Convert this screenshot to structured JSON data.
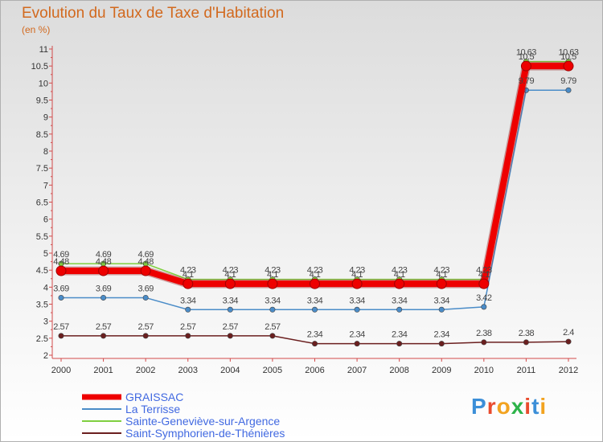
{
  "header": {
    "title": "Evolution du Taux de Taxe d'Habitation",
    "subtitle": "(en %)"
  },
  "colors": {
    "title": "#d2691e",
    "axis": "#d24b4b",
    "legend_text": "#4169e1"
  },
  "logo": {
    "text": "Proxiti",
    "letter_colors": [
      "#3c8fd8",
      "#e94b2e",
      "#f2a320",
      "#2db34a",
      "#e94b2e",
      "#3c8fd8",
      "#f2a320"
    ]
  },
  "chart_data": {
    "type": "line",
    "title": "Evolution du Taux de Taxe d'Habitation",
    "ylabel": "(en %)",
    "xlabel": "",
    "ylim": [
      2,
      11
    ],
    "yticks": [
      2,
      2.5,
      3,
      3.5,
      4,
      4.5,
      5,
      5.5,
      6,
      6.5,
      7,
      7.5,
      8,
      8.5,
      9,
      9.5,
      10,
      10.5,
      11
    ],
    "ytick_labels": [
      "2",
      "2.5",
      "3",
      "3.5",
      "4",
      "4.5",
      "5",
      "5.5",
      "6",
      "6.5",
      "7",
      "7.5",
      "8",
      "8.5",
      "9",
      "9.5",
      "10",
      "10.5",
      "11"
    ],
    "x": [
      "2000",
      "2001",
      "2002",
      "2003",
      "2004",
      "2005",
      "2006",
      "2007",
      "2008",
      "2009",
      "2010",
      "2011",
      "2012"
    ],
    "series": [
      {
        "name": "Saint-Symphorien-de-Thénières",
        "color": "#6b1f1f",
        "thick": false,
        "values": [
          2.57,
          2.57,
          2.57,
          2.57,
          2.57,
          2.57,
          2.34,
          2.34,
          2.34,
          2.34,
          2.38,
          2.38,
          2.4
        ],
        "labels": [
          "2.57",
          "2.57",
          "2.57",
          "2.57",
          "2.57",
          "2.57",
          "2.34",
          "2.34",
          "2.34",
          "2.34",
          "2.38",
          "2.38",
          "2.4"
        ]
      },
      {
        "name": "La Terrisse",
        "color": "#4a8cc8",
        "thick": false,
        "values": [
          3.69,
          3.69,
          3.69,
          3.34,
          3.34,
          3.34,
          3.34,
          3.34,
          3.34,
          3.34,
          3.42,
          9.79,
          9.79
        ],
        "labels": [
          "3.69",
          "3.69",
          "3.69",
          "3.34",
          "3.34",
          "3.34",
          "3.34",
          "3.34",
          "3.34",
          "3.34",
          "3.42",
          "9.79",
          "9.79"
        ]
      },
      {
        "name": "Sainte-Geneviève-sur-Argence",
        "color": "#7fcf3f",
        "thick": false,
        "values": [
          4.69,
          4.69,
          4.69,
          4.23,
          4.23,
          4.23,
          4.23,
          4.23,
          4.23,
          4.23,
          4.23,
          10.63,
          10.63
        ],
        "labels": [
          "4.69",
          "4.69",
          "4.69",
          "4.23",
          "4.23",
          "4.23",
          "4.23",
          "4.23",
          "4.23",
          "4.23",
          "4.23",
          "10.63",
          "10.63"
        ]
      },
      {
        "name": "GRAISSAC",
        "color": "#ee0000",
        "thick": true,
        "values": [
          4.48,
          4.48,
          4.48,
          4.1,
          4.1,
          4.1,
          4.1,
          4.1,
          4.1,
          4.1,
          4.1,
          10.5,
          10.5
        ],
        "labels": [
          "4.48",
          "4.48",
          "4.48",
          "4.1",
          "4.1",
          "4.1",
          "4.1",
          "4.1",
          "4.1",
          "4.1",
          "4.1",
          "10.5",
          "10.5"
        ]
      }
    ],
    "legend": [
      "GRAISSAC",
      "La Terrisse",
      "Sainte-Geneviève-sur-Argence",
      "Saint-Symphorien-de-Thénières"
    ],
    "legend_position": "bottom-left"
  }
}
